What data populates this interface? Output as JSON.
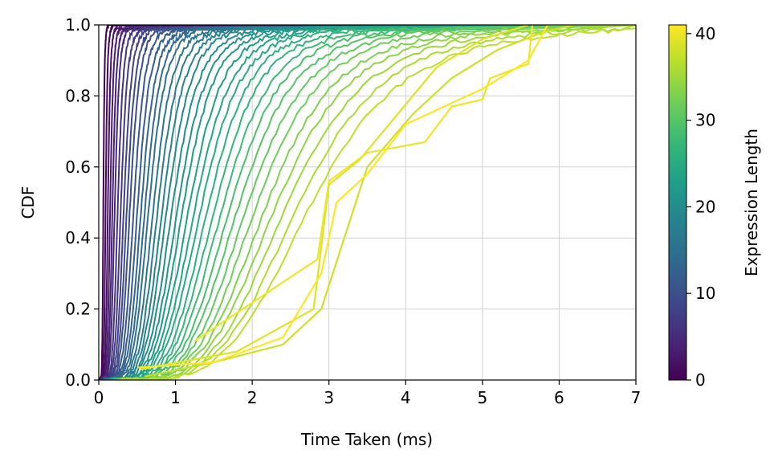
{
  "chart_data": {
    "type": "line",
    "title": "",
    "xlabel": "Time Taken (ms)",
    "ylabel": "CDF",
    "xlim": [
      0,
      7
    ],
    "ylim": [
      0,
      1
    ],
    "xticks": [
      "0",
      "1",
      "2",
      "3",
      "4",
      "5",
      "6",
      "7"
    ],
    "yticks": [
      "0.0",
      "0.2",
      "0.4",
      "0.6",
      "0.8",
      "1.0"
    ],
    "grid": true,
    "colormap": "viridis",
    "colorbar": {
      "label": "Expression Length",
      "range": [
        0,
        41
      ],
      "ticks": [
        "0",
        "10",
        "20",
        "30",
        "40"
      ]
    },
    "series_model": {
      "description": "One CDF curve per expression length 0..41; median time grows with length",
      "medians": [
        0.06,
        0.09,
        0.12,
        0.15,
        0.18,
        0.21,
        0.25,
        0.29,
        0.33,
        0.37,
        0.41,
        0.46,
        0.51,
        0.56,
        0.61,
        0.66,
        0.72,
        0.78,
        0.84,
        0.9,
        0.97,
        1.04,
        1.11,
        1.19,
        1.27,
        1.35,
        1.44,
        1.53,
        1.63,
        1.73,
        1.84,
        1.95,
        2.07,
        2.2,
        2.33,
        2.47,
        2.62,
        2.78,
        2.95,
        3.1,
        3.25,
        3.4
      ]
    },
    "irregular_series": [
      {
        "length": 38,
        "points": [
          [
            0.6,
            0.01
          ],
          [
            1.5,
            0.05
          ],
          [
            2.4,
            0.1
          ],
          [
            2.9,
            0.2
          ],
          [
            3.2,
            0.4
          ],
          [
            3.5,
            0.6
          ],
          [
            4.1,
            0.75
          ],
          [
            4.6,
            0.85
          ],
          [
            5.2,
            0.93
          ],
          [
            5.8,
            0.98
          ],
          [
            6.2,
            1.0
          ]
        ]
      },
      {
        "length": 39,
        "points": [
          [
            0.55,
            0.03
          ],
          [
            1.8,
            0.08
          ],
          [
            2.8,
            0.2
          ],
          [
            3.0,
            0.55
          ],
          [
            3.4,
            0.62
          ],
          [
            3.9,
            0.75
          ],
          [
            4.4,
            0.88
          ],
          [
            5.0,
            0.96
          ],
          [
            5.6,
            1.0
          ]
        ]
      },
      {
        "length": 40,
        "points": [
          [
            1.25,
            0.11
          ],
          [
            2.85,
            0.34
          ],
          [
            3.0,
            0.56
          ],
          [
            3.5,
            0.64
          ],
          [
            4.25,
            0.67
          ],
          [
            4.6,
            0.77
          ],
          [
            5.0,
            0.79
          ],
          [
            5.1,
            0.85
          ],
          [
            5.6,
            0.89
          ],
          [
            5.65,
            1.0
          ]
        ]
      },
      {
        "length": 41,
        "points": [
          [
            0.5,
            0.035
          ],
          [
            1.5,
            0.05
          ],
          [
            2.4,
            0.12
          ],
          [
            2.9,
            0.3
          ],
          [
            3.1,
            0.5
          ],
          [
            3.5,
            0.58
          ],
          [
            4.0,
            0.72
          ],
          [
            4.6,
            0.78
          ],
          [
            5.0,
            0.82
          ],
          [
            5.6,
            0.9
          ],
          [
            5.85,
            1.0
          ],
          [
            7.0,
            1.0
          ]
        ]
      }
    ]
  }
}
